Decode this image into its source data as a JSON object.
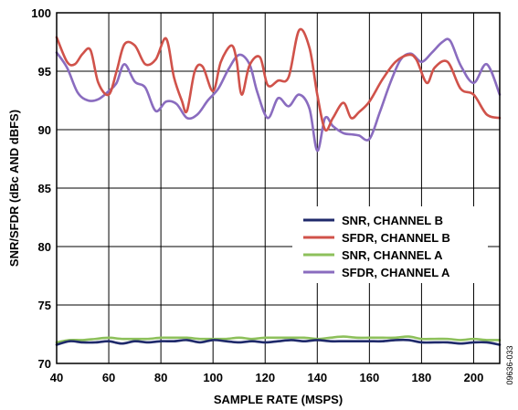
{
  "chart_data": {
    "type": "line",
    "xlabel": "SAMPLE RATE (MSPS)",
    "ylabel": "SNR/SFDR (dBc AND dBFS)",
    "xlim": [
      40,
      210
    ],
    "ylim": [
      70,
      100
    ],
    "xticks": [
      40,
      60,
      80,
      100,
      120,
      140,
      160,
      180,
      200
    ],
    "yticks": [
      70,
      75,
      80,
      85,
      90,
      95,
      100
    ],
    "grid": true,
    "legend_position": "center-right",
    "figure_code": "09636-033",
    "series": [
      {
        "name": "SNR, CHANNEL B",
        "color": "#1f2a6b",
        "x": [
          40,
          45,
          50,
          55,
          60,
          65,
          70,
          75,
          80,
          85,
          90,
          95,
          100,
          105,
          110,
          115,
          120,
          125,
          130,
          135,
          140,
          145,
          150,
          155,
          160,
          165,
          170,
          175,
          180,
          185,
          190,
          195,
          200,
          205,
          210
        ],
        "y": [
          71.6,
          71.9,
          71.8,
          71.8,
          71.9,
          71.7,
          71.9,
          71.8,
          71.9,
          71.9,
          72.0,
          71.8,
          72.0,
          71.9,
          71.8,
          71.9,
          71.8,
          71.9,
          72.0,
          71.9,
          72.0,
          71.9,
          71.9,
          71.9,
          71.9,
          71.9,
          72.0,
          72.0,
          71.8,
          71.8,
          71.8,
          71.7,
          71.8,
          71.8,
          71.6
        ]
      },
      {
        "name": "SFDR, CHANNEL B",
        "color": "#d0524a",
        "x": [
          40,
          44,
          47,
          50,
          53,
          56,
          60,
          63,
          66,
          70,
          74,
          78,
          82,
          85,
          88,
          90,
          93,
          96,
          100,
          103,
          107,
          109,
          111,
          114,
          118,
          121,
          125,
          129,
          133,
          137,
          140,
          143,
          146,
          150,
          153,
          156,
          160,
          165,
          170,
          175,
          178,
          182,
          185,
          190,
          195,
          200,
          205,
          210
        ],
        "y": [
          97.9,
          95.8,
          95.6,
          96.5,
          96.8,
          94.0,
          93.0,
          95.0,
          97.3,
          97.2,
          95.6,
          96.0,
          97.8,
          94.5,
          92.5,
          91.6,
          95.0,
          95.4,
          93.3,
          95.8,
          97.2,
          96.0,
          93.0,
          95.5,
          96.2,
          93.8,
          94.2,
          94.5,
          98.5,
          97.0,
          93.0,
          90.0,
          91.0,
          92.3,
          91.0,
          91.5,
          92.4,
          94.3,
          95.8,
          96.4,
          96.0,
          94.0,
          95.3,
          95.8,
          93.5,
          93.0,
          91.3,
          91.0
        ]
      },
      {
        "name": "SNR, CHANNEL A",
        "color": "#8dc05b",
        "x": [
          40,
          45,
          50,
          55,
          60,
          65,
          70,
          75,
          80,
          85,
          90,
          95,
          100,
          105,
          110,
          115,
          120,
          125,
          130,
          135,
          140,
          145,
          150,
          155,
          160,
          165,
          170,
          175,
          180,
          185,
          190,
          195,
          200,
          205,
          210
        ],
        "y": [
          71.8,
          72.0,
          72.0,
          72.1,
          72.2,
          72.1,
          72.1,
          72.1,
          72.2,
          72.2,
          72.2,
          72.1,
          72.1,
          72.1,
          72.2,
          72.1,
          72.2,
          72.2,
          72.2,
          72.2,
          72.1,
          72.2,
          72.3,
          72.2,
          72.2,
          72.2,
          72.2,
          72.3,
          72.1,
          72.1,
          72.1,
          72.0,
          72.1,
          72.0,
          72.0
        ]
      },
      {
        "name": "SFDR, CHANNEL A",
        "color": "#8a6cbf",
        "x": [
          40,
          44,
          48,
          52,
          56,
          60,
          63,
          66,
          70,
          74,
          78,
          82,
          86,
          90,
          94,
          98,
          102,
          106,
          110,
          114,
          117,
          121,
          125,
          129,
          133,
          137,
          140,
          143,
          146,
          150,
          153,
          156,
          160,
          164,
          168,
          172,
          176,
          180,
          184,
          188,
          191,
          195,
          200,
          205,
          210
        ],
        "y": [
          96.6,
          95.3,
          93.2,
          92.5,
          92.6,
          93.3,
          94.0,
          95.6,
          94.1,
          93.6,
          91.6,
          92.4,
          92.2,
          91.0,
          91.3,
          92.5,
          93.5,
          95.2,
          96.4,
          95.6,
          93.2,
          91.0,
          92.7,
          92.0,
          93.0,
          91.8,
          88.2,
          91.0,
          90.3,
          89.7,
          89.6,
          89.5,
          89.2,
          91.5,
          94.0,
          96.0,
          96.5,
          95.8,
          96.6,
          97.5,
          97.6,
          95.5,
          94.0,
          95.6,
          93.0
        ]
      }
    ]
  }
}
